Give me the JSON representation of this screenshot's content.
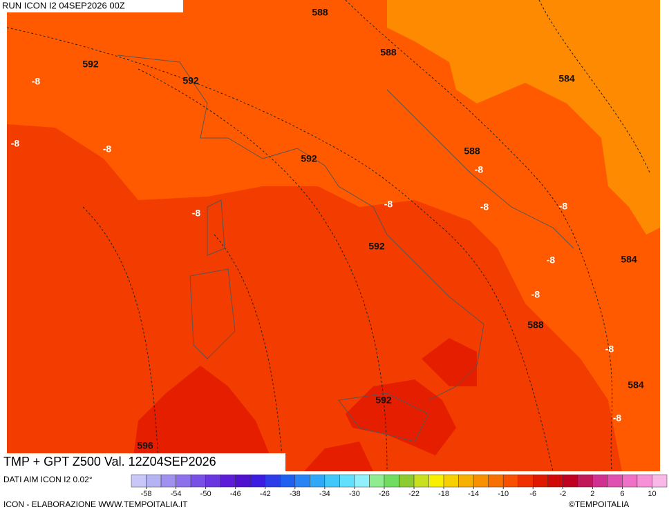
{
  "header": {
    "run": "RUN ICON I2 04SEP2026 00Z"
  },
  "map": {
    "contour_labels": [
      "588",
      "588",
      "592",
      "592",
      "-8",
      "584",
      "-8",
      "-8",
      "588",
      "592",
      "-8",
      "-8",
      "-8",
      "-8",
      "-8",
      "592",
      "-8",
      "584",
      "-8",
      "588",
      "-8",
      "584",
      "592",
      "-8",
      "596"
    ]
  },
  "footer": {
    "title": "TMP + GPT Z500 Val. 12Z04SEP2026",
    "source": "DATI AIM ICON I2 0.02°",
    "credit": "ICON - ELABORAZIONE WWW.TEMPOITALIA.IT",
    "copyright": "©TEMPOITALIA"
  },
  "colorbar": {
    "lim": [
      -60,
      12
    ],
    "ticks": [
      -58,
      -54,
      -50,
      -46,
      -42,
      -38,
      -34,
      -30,
      -26,
      -22,
      -18,
      -14,
      -10,
      -6,
      -2,
      2,
      6,
      10
    ],
    "colors": [
      "#c8c8f8",
      "#b4b4f4",
      "#a090f0",
      "#8c70ec",
      "#7850e6",
      "#6a36e0",
      "#5c1cd8",
      "#5010d0",
      "#3c1ce0",
      "#2c3ce8",
      "#2060f0",
      "#2884f4",
      "#30a8f8",
      "#40c8fa",
      "#60e0fc",
      "#90f0fc",
      "#90ec90",
      "#70dc60",
      "#8ccc30",
      "#c8e020",
      "#f8f000",
      "#f8d000",
      "#f8b000",
      "#f89000",
      "#f87000",
      "#f85000",
      "#f03000",
      "#e01800",
      "#d00808",
      "#c00020",
      "#c01858",
      "#d03090",
      "#e050b0",
      "#f070c8",
      "#f890d8",
      "#f8b8e8"
    ]
  }
}
